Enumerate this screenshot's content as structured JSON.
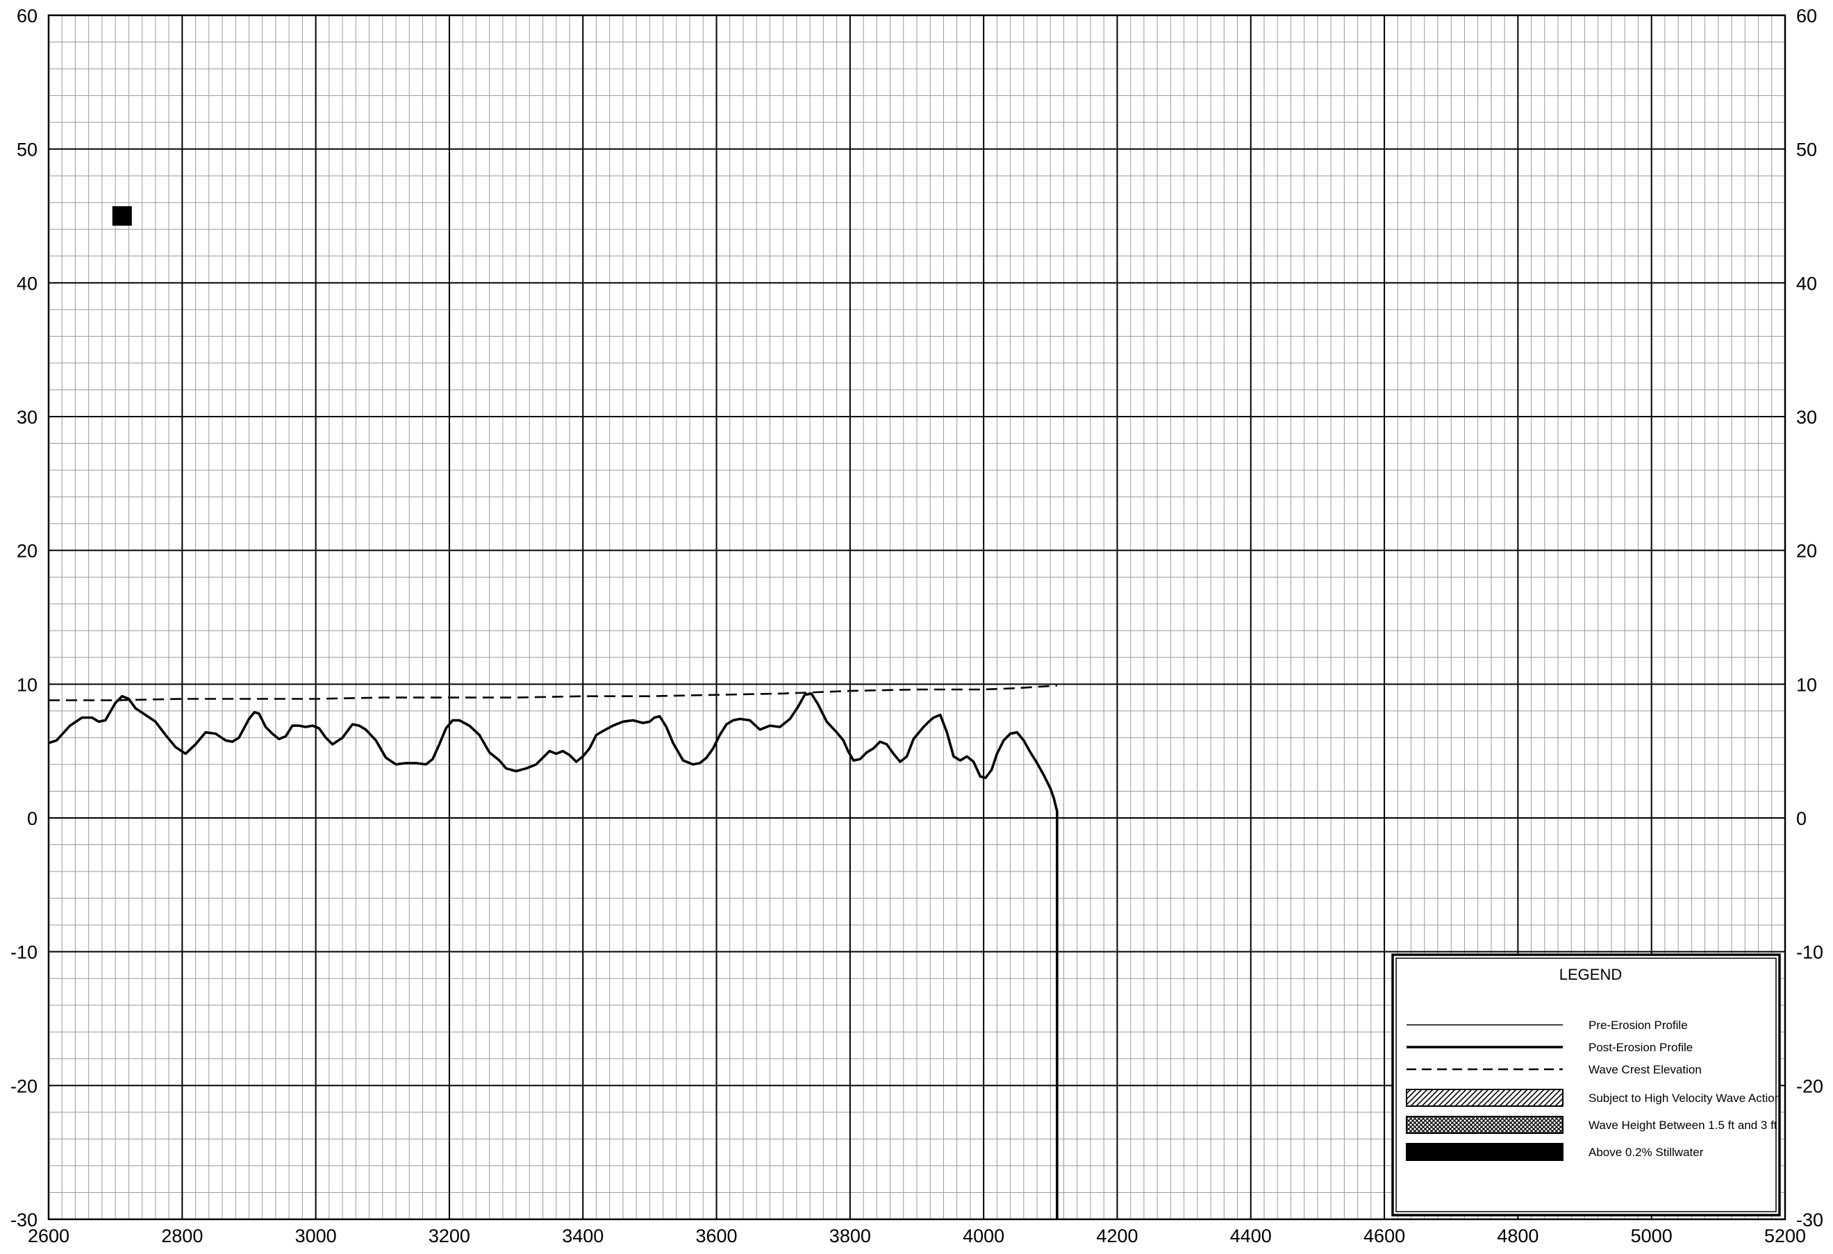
{
  "chart_data": {
    "type": "line",
    "title": "",
    "xlabel": "",
    "ylabel": "",
    "xlim": [
      2600,
      5200
    ],
    "ylim": [
      -30,
      60
    ],
    "x_ticks": [
      2600,
      2800,
      3000,
      3200,
      3400,
      3600,
      3800,
      4000,
      4200,
      4400,
      4600,
      4800,
      5000,
      5200
    ],
    "y_ticks": [
      -30,
      -20,
      -10,
      0,
      10,
      20,
      30,
      40,
      50,
      60
    ],
    "x_tick_labels": [
      "2600",
      "2800",
      "3000",
      "3200",
      "3400",
      "3600",
      "3800",
      "4000",
      "4200",
      "4400",
      "4600",
      "4800",
      "5000",
      "5200"
    ],
    "y_tick_labels": [
      "-30",
      "-20",
      "-10",
      "0",
      "10",
      "20",
      "30",
      "40",
      "50",
      "60"
    ],
    "grid": true,
    "minor_grid_x_step": 20,
    "minor_grid_y_step": 2,
    "series": [
      {
        "name": "Post-Erosion Profile",
        "style": "solid-bold",
        "color": "#000000",
        "x": [
          2600,
          2612,
          2632,
          2650,
          2665,
          2675,
          2685,
          2700,
          2710,
          2720,
          2730,
          2745,
          2760,
          2775,
          2790,
          2805,
          2820,
          2835,
          2850,
          2865,
          2875,
          2885,
          2900,
          2908,
          2915,
          2925,
          2935,
          2945,
          2955,
          2965,
          2975,
          2985,
          2995,
          3005,
          3015,
          3025,
          3040,
          3055,
          3065,
          3075,
          3090,
          3105,
          3120,
          3135,
          3150,
          3165,
          3175,
          3185,
          3195,
          3205,
          3215,
          3230,
          3245,
          3260,
          3275,
          3285,
          3300,
          3315,
          3330,
          3340,
          3350,
          3360,
          3370,
          3380,
          3390,
          3400,
          3410,
          3420,
          3430,
          3445,
          3460,
          3475,
          3490,
          3500,
          3507,
          3515,
          3525,
          3535,
          3550,
          3565,
          3575,
          3585,
          3595,
          3605,
          3615,
          3625,
          3635,
          3650,
          3665,
          3680,
          3695,
          3710,
          3722,
          3732,
          3742,
          3752,
          3765,
          3780,
          3790,
          3797,
          3805,
          3815,
          3825,
          3835,
          3845,
          3855,
          3865,
          3875,
          3885,
          3895,
          3910,
          3918,
          3925,
          3935,
          3945,
          3955,
          3965,
          3975,
          3985,
          3995,
          4003,
          4012,
          4020,
          4030,
          4040,
          4050,
          4060,
          4070,
          4080,
          4090,
          4100,
          4105,
          4110
        ],
        "y": [
          5.6,
          5.8,
          6.9,
          7.5,
          7.5,
          7.2,
          7.3,
          8.6,
          9.1,
          8.9,
          8.2,
          7.7,
          7.2,
          6.2,
          5.3,
          4.8,
          5.5,
          6.4,
          6.3,
          5.8,
          5.7,
          6.0,
          7.4,
          7.9,
          7.8,
          6.8,
          6.3,
          5.9,
          6.1,
          6.9,
          6.9,
          6.8,
          6.9,
          6.7,
          6.0,
          5.5,
          6.0,
          7.0,
          6.9,
          6.6,
          5.8,
          4.5,
          4.0,
          4.1,
          4.1,
          4.0,
          4.4,
          5.5,
          6.7,
          7.3,
          7.3,
          6.9,
          6.2,
          4.9,
          4.3,
          3.7,
          3.5,
          3.7,
          4.0,
          4.5,
          5.0,
          4.8,
          5.0,
          4.7,
          4.2,
          4.6,
          5.2,
          6.2,
          6.5,
          6.9,
          7.2,
          7.3,
          7.1,
          7.2,
          7.5,
          7.6,
          6.8,
          5.6,
          4.3,
          4.0,
          4.1,
          4.5,
          5.2,
          6.2,
          7.0,
          7.3,
          7.4,
          7.3,
          6.6,
          6.9,
          6.8,
          7.4,
          8.3,
          9.2,
          9.3,
          8.5,
          7.2,
          6.4,
          5.8,
          5.0,
          4.3,
          4.4,
          4.9,
          5.2,
          5.7,
          5.5,
          4.8,
          4.2,
          4.6,
          5.9,
          6.8,
          7.2,
          7.5,
          7.7,
          6.4,
          4.6,
          4.3,
          4.6,
          4.2,
          3.1,
          3.0,
          3.6,
          4.8,
          5.8,
          6.3,
          6.4,
          5.8,
          4.9,
          4.1,
          3.2,
          2.2,
          1.5,
          0.5
        ],
        "drop_to": -30
      },
      {
        "name": "Wave Crest Elevation",
        "style": "dashed",
        "color": "#000000",
        "x": [
          2600,
          2700,
          2800,
          2900,
          3000,
          3100,
          3200,
          3300,
          3400,
          3500,
          3600,
          3700,
          3800,
          3900,
          4000,
          4050,
          4110
        ],
        "y": [
          8.8,
          8.8,
          8.9,
          8.9,
          8.9,
          9.0,
          9.0,
          9.0,
          9.1,
          9.1,
          9.2,
          9.3,
          9.5,
          9.6,
          9.6,
          9.7,
          9.9
        ]
      }
    ],
    "markers": [
      {
        "kind": "filled-square",
        "x": 2710,
        "y": 45,
        "color": "#000000"
      }
    ],
    "legend": {
      "title": "LEGEND",
      "placement": "bottom-right",
      "entries": [
        {
          "label": "Pre-Erosion Profile",
          "symbol": "line-thin"
        },
        {
          "label": "Post-Erosion Profile",
          "symbol": "line-bold"
        },
        {
          "label": "Wave Crest Elevation",
          "symbol": "line-dashed"
        },
        {
          "label": "Subject to High Velocity Wave Action",
          "symbol": "hatch-diagonal"
        },
        {
          "label": "Wave Height Between 1.5 ft and 3 ft",
          "symbol": "hatch-cross"
        },
        {
          "label": "Above 0.2% Stillwater",
          "symbol": "fill-solid"
        }
      ]
    }
  }
}
